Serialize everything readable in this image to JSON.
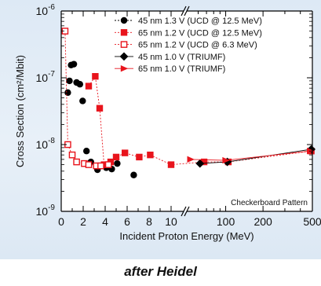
{
  "chart_data": {
    "type": "scatter",
    "xlabel": "Incident Proton Energy (MeV)",
    "ylabel": "Cross Section (cm²/Mbit)",
    "yscale": "log",
    "ylim": [
      1e-09,
      1e-06
    ],
    "x_axis": {
      "break": true,
      "segments": [
        {
          "range": [
            0,
            11
          ],
          "scale": "linear",
          "ticks": [
            0,
            2,
            4,
            6,
            8,
            10
          ],
          "tick_labels": [
            "0",
            "2",
            "4",
            "6",
            "8",
            "10"
          ]
        },
        {
          "range": [
            50,
            500
          ],
          "scale": "log",
          "ticks": [
            100,
            200,
            500
          ],
          "tick_labels": [
            "100",
            "200",
            "500"
          ]
        }
      ]
    },
    "y_ticks": [
      {
        "value": 1e-09,
        "label_base": "10",
        "label_exp": "-9"
      },
      {
        "value": 1e-08,
        "label_base": "10",
        "label_exp": "-8"
      },
      {
        "value": 1e-07,
        "label_base": "10",
        "label_exp": "-7"
      },
      {
        "value": 1e-06,
        "label_base": "10",
        "label_exp": "-6"
      }
    ],
    "annotation": "Checkerboard Pattern",
    "legend_position": "top-right",
    "series": [
      {
        "name": "45 nm 1.3 V (UCD @ 12.5 MeV)",
        "marker": "circle-filled",
        "color": "#000000",
        "line": "none",
        "points": [
          [
            0.6,
            6e-08
          ],
          [
            0.75,
            9e-08
          ],
          [
            0.9,
            1.55e-07
          ],
          [
            1.15,
            1.6e-07
          ],
          [
            1.4,
            8.5e-08
          ],
          [
            1.7,
            8e-08
          ],
          [
            1.95,
            4.5e-08
          ],
          [
            2.3,
            8e-09
          ],
          [
            2.7,
            5.5e-09
          ],
          [
            3.3,
            4.2e-09
          ],
          [
            4.1,
            4.5e-09
          ],
          [
            4.6,
            4.3e-09
          ],
          [
            5.1,
            5.2e-09
          ],
          [
            6.6,
            3.5e-09
          ]
        ]
      },
      {
        "name": "65 nm 1.2 V (UCD @ 12.5 MeV)",
        "marker": "square-filled",
        "color": "#e8141c",
        "line": "dotted",
        "points": [
          [
            2.5,
            7.5e-08
          ],
          [
            3.1,
            1.05e-07
          ],
          [
            3.5,
            3.5e-08
          ],
          [
            3.9,
            5e-09
          ],
          [
            4.5,
            5.5e-09
          ],
          [
            5.0,
            6.5e-09
          ],
          [
            5.8,
            7.5e-09
          ],
          [
            7.1,
            6.5e-09
          ],
          [
            8.1,
            7e-09
          ],
          [
            10.0,
            5e-09
          ],
          [
            67,
            5.5e-09
          ],
          [
            105,
            5.5e-09
          ],
          [
            490,
            8e-09
          ]
        ]
      },
      {
        "name": "65 nm 1.2 V (UCD @  6.3 MeV)",
        "marker": "square-open",
        "color": "#e8141c",
        "line": "dotted",
        "points": [
          [
            0.35,
            5e-07
          ],
          [
            0.6,
            1e-08
          ],
          [
            1.0,
            7e-09
          ],
          [
            1.4,
            5.5e-09
          ],
          [
            2.1,
            5.2e-09
          ],
          [
            2.5,
            5e-09
          ],
          [
            3.2,
            4.8e-09
          ],
          [
            3.6,
            4.8e-09
          ],
          [
            4.3,
            5e-09
          ]
        ]
      },
      {
        "name": "45 nm 1.0 V (TRIUMF)",
        "marker": "diamond-filled",
        "color": "#000000",
        "line": "solid",
        "points": [
          [
            62,
            5.2e-09
          ],
          [
            103,
            5.5e-09
          ],
          [
            490,
            8.5e-09
          ]
        ]
      },
      {
        "name": "65 nm 1.0 V (TRIUMF)",
        "marker": "triangle-right-filled",
        "color": "#e8141c",
        "line": "solid",
        "points": [
          [
            52,
            6e-09
          ],
          [
            100,
            5.8e-09
          ],
          [
            480,
            8e-09
          ]
        ]
      }
    ]
  },
  "caption": "after Heidel"
}
